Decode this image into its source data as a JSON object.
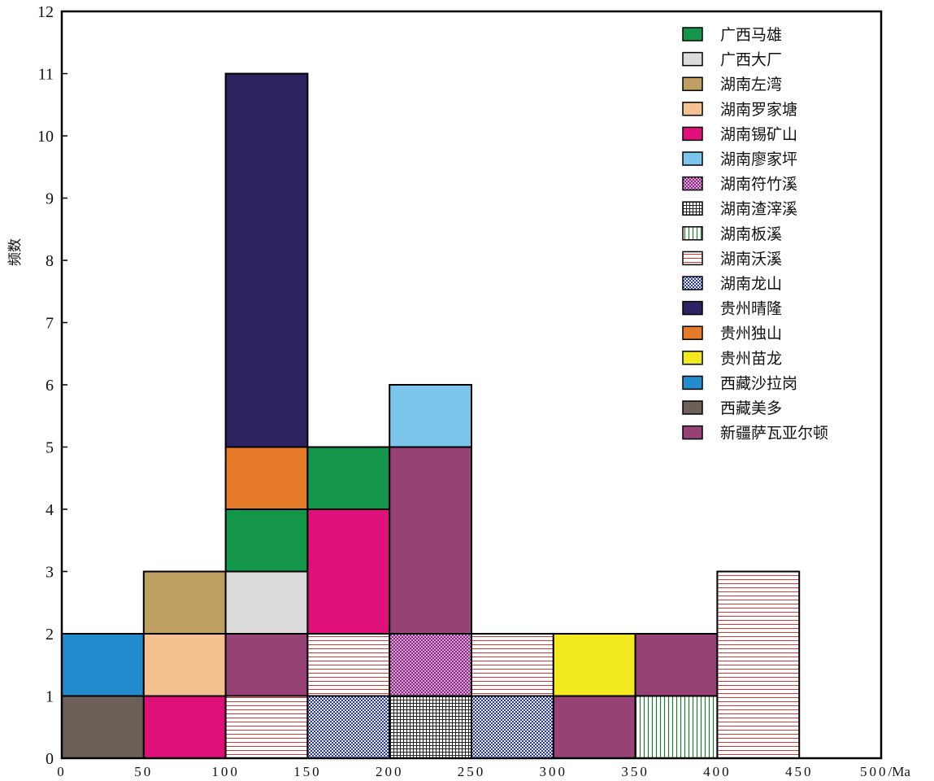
{
  "chart_data": {
    "type": "bar",
    "subtype": "stacked-histogram",
    "title": "",
    "xlabel": "",
    "x_unit": "/Ma",
    "ylabel": "频数",
    "xlim": [
      0,
      500
    ],
    "ylim": [
      0,
      12
    ],
    "grid": false,
    "legend_position": "top-right",
    "x_ticks": [
      "0",
      "50",
      "100",
      "150",
      "200",
      "250",
      "300",
      "350",
      "400",
      "450",
      "500"
    ],
    "y_ticks": [
      "0",
      "1",
      "2",
      "3",
      "4",
      "5",
      "6",
      "7",
      "8",
      "9",
      "10",
      "11",
      "12"
    ],
    "legend": [
      {
        "name": "广西马雄",
        "color": "#13954a",
        "pattern": "solid"
      },
      {
        "name": "广西大厂",
        "color": "#dcdcdc",
        "pattern": "solid"
      },
      {
        "name": "湖南左湾",
        "color": "#bd9f61",
        "pattern": "solid"
      },
      {
        "name": "湖南罗家塘",
        "color": "#f4c290",
        "pattern": "solid"
      },
      {
        "name": "湖南锡矿山",
        "color": "#e0107a",
        "pattern": "solid"
      },
      {
        "name": "湖南廖家坪",
        "color": "#7cc5ec",
        "pattern": "solid"
      },
      {
        "name": "湖南符竹溪",
        "color": "#8b2a86",
        "pattern": "dots"
      },
      {
        "name": "湖南渣滓溪",
        "color": "#222222",
        "pattern": "grid"
      },
      {
        "name": "湖南板溪",
        "color": "#1f7a2f",
        "pattern": "vlines"
      },
      {
        "name": "湖南沃溪",
        "color": "#d23a3a",
        "pattern": "hlines"
      },
      {
        "name": "湖南龙山",
        "color": "#2a3aa0",
        "pattern": "check"
      },
      {
        "name": "贵州晴隆",
        "color": "#2c2462",
        "pattern": "solid"
      },
      {
        "name": "贵州独山",
        "color": "#e57a28",
        "pattern": "solid"
      },
      {
        "name": "贵州苗龙",
        "color": "#f2ea1f",
        "pattern": "solid"
      },
      {
        "name": "西藏沙拉岗",
        "color": "#238ccf",
        "pattern": "solid"
      },
      {
        "name": "西藏美多",
        "color": "#6d6058",
        "pattern": "solid"
      },
      {
        "name": "新疆萨瓦亚尔顿",
        "color": "#964276",
        "pattern": "solid"
      }
    ],
    "bins": [
      {
        "range": [
          0,
          50
        ],
        "stack": [
          {
            "series": "西藏美多",
            "value": 1
          },
          {
            "series": "西藏沙拉岗",
            "value": 1
          }
        ]
      },
      {
        "range": [
          50,
          100
        ],
        "stack": [
          {
            "series": "湖南锡矿山",
            "value": 1
          },
          {
            "series": "湖南罗家塘",
            "value": 1
          },
          {
            "series": "湖南左湾",
            "value": 1
          }
        ]
      },
      {
        "range": [
          100,
          150
        ],
        "stack": [
          {
            "series": "湖南沃溪",
            "value": 1
          },
          {
            "series": "新疆萨瓦亚尔顿",
            "value": 1
          },
          {
            "series": "广西大厂",
            "value": 1
          },
          {
            "series": "广西马雄",
            "value": 1
          },
          {
            "series": "贵州独山",
            "value": 1
          },
          {
            "series": "贵州晴隆",
            "value": 6
          }
        ]
      },
      {
        "range": [
          150,
          200
        ],
        "stack": [
          {
            "series": "湖南龙山",
            "value": 1
          },
          {
            "series": "湖南沃溪",
            "value": 1
          },
          {
            "series": "湖南锡矿山",
            "value": 2
          },
          {
            "series": "广西马雄",
            "value": 1
          }
        ]
      },
      {
        "range": [
          200,
          250
        ],
        "stack": [
          {
            "series": "湖南渣滓溪",
            "value": 1
          },
          {
            "series": "湖南符竹溪",
            "value": 1
          },
          {
            "series": "新疆萨瓦亚尔顿",
            "value": 3
          },
          {
            "series": "湖南廖家坪",
            "value": 1
          }
        ]
      },
      {
        "range": [
          250,
          300
        ],
        "stack": [
          {
            "series": "湖南龙山",
            "value": 1
          },
          {
            "series": "湖南沃溪",
            "value": 1
          }
        ]
      },
      {
        "range": [
          300,
          350
        ],
        "stack": [
          {
            "series": "新疆萨瓦亚尔顿",
            "value": 1
          },
          {
            "series": "贵州苗龙",
            "value": 1
          }
        ]
      },
      {
        "range": [
          350,
          400
        ],
        "stack": [
          {
            "series": "湖南板溪",
            "value": 1
          },
          {
            "series": "新疆萨瓦亚尔顿",
            "value": 1
          }
        ]
      },
      {
        "range": [
          400,
          450
        ],
        "stack": [
          {
            "series": "湖南沃溪",
            "value": 3
          }
        ]
      },
      {
        "range": [
          450,
          500
        ],
        "stack": []
      }
    ]
  }
}
